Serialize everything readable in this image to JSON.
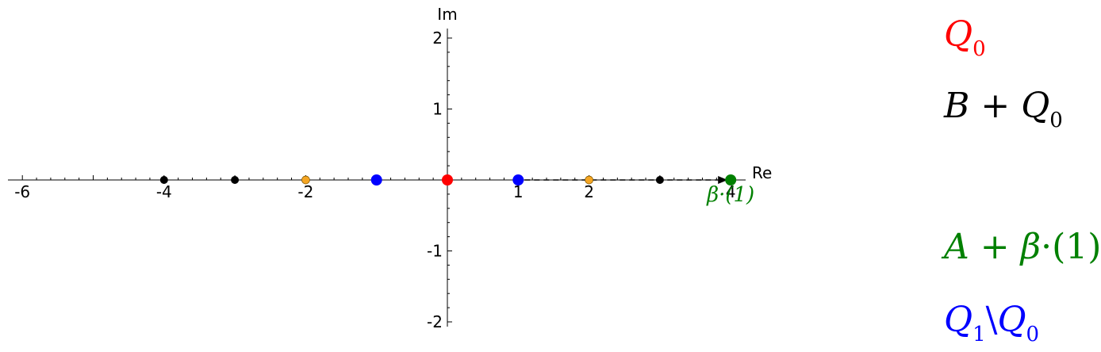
{
  "chart_data": {
    "type": "scatter",
    "xlabel": "Re",
    "ylabel": "Im",
    "xlim": [
      -6.2,
      4.3
    ],
    "ylim": [
      -2.05,
      2.1
    ],
    "x_ticks": [
      {
        "value": -6,
        "label": "-6"
      },
      {
        "value": -4,
        "label": "-4"
      },
      {
        "value": -2,
        "label": "-2"
      },
      {
        "value": 1,
        "label": "1"
      },
      {
        "value": 2,
        "label": "2"
      },
      {
        "value": 4,
        "label": "4"
      }
    ],
    "y_ticks": [
      {
        "value": 2,
        "label": "2"
      },
      {
        "value": 1,
        "label": "1"
      },
      {
        "value": -1,
        "label": "-1"
      },
      {
        "value": -2,
        "label": "-2"
      }
    ],
    "points": [
      {
        "x": -4,
        "y": 0,
        "color": "#000000",
        "r": 5
      },
      {
        "x": -3,
        "y": 0,
        "color": "#000000",
        "r": 5
      },
      {
        "x": -2,
        "y": 0,
        "color": "#f5a623",
        "r": 5
      },
      {
        "x": -1,
        "y": 0,
        "color": "#0000ff",
        "r": 7
      },
      {
        "x": 0,
        "y": 0,
        "color": "#ff0000",
        "r": 7
      },
      {
        "x": 1,
        "y": 0,
        "color": "#0000ff",
        "r": 7
      },
      {
        "x": 2,
        "y": 0,
        "color": "#f5a623",
        "r": 5
      },
      {
        "x": 3,
        "y": 0,
        "color": "#000000",
        "r": 5
      },
      {
        "x": 4,
        "y": 0,
        "color": "#008000",
        "r": 7
      }
    ],
    "arrow": {
      "from": [
        1,
        0
      ],
      "to": [
        4,
        0
      ],
      "label": "β·(1)",
      "color": "#008000"
    },
    "legend": [
      {
        "text": "Q₀",
        "color": "#ff0000"
      },
      {
        "text": "B + Q₀",
        "color": "#000000"
      },
      {
        "text": "A + β·(1)",
        "color": "#008000"
      },
      {
        "text": "Q₁ \\ Q₀",
        "color": "#0000ff"
      }
    ]
  },
  "legend": {
    "red_main": "Q",
    "red_sub": "0",
    "black_b": "B",
    "black_plus": "+",
    "black_q": "Q",
    "black_sub": "0",
    "green_a": "A",
    "green_plus": "+",
    "green_beta": "β",
    "green_dot": "·",
    "green_one": "(1)",
    "blue_q1": "Q",
    "blue_sub1": "1",
    "blue_setminus": "\\",
    "blue_q0": "Q",
    "blue_sub0": "0"
  }
}
